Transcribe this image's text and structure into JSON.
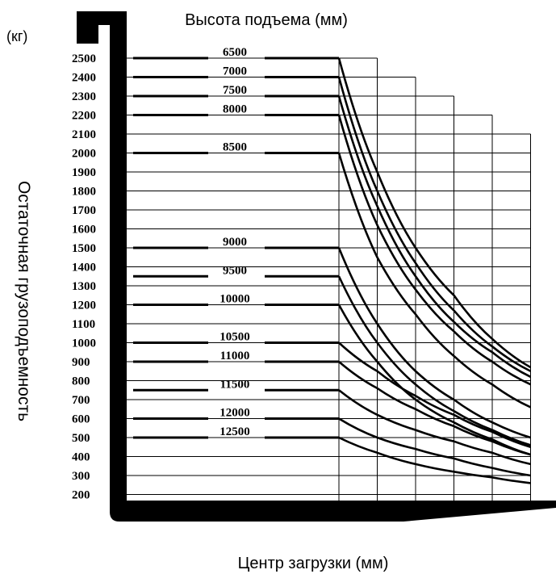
{
  "chart_data": {
    "type": "line",
    "title": "Высота подъема (мм)",
    "y_unit": "(кг)",
    "ylabel": "Остаточная грузоподъемность",
    "xlabel": "Центр загрузки (мм)",
    "y_ticks": [
      2500,
      2400,
      2300,
      2200,
      2100,
      2000,
      1900,
      1800,
      1700,
      1600,
      1500,
      1400,
      1300,
      1200,
      1100,
      1000,
      900,
      800,
      700,
      600,
      500,
      400,
      300,
      200
    ],
    "x_columns": 5,
    "grid": true,
    "series": [
      {
        "name": "6500",
        "level": 2500,
        "end_col": 0,
        "values": [
          2500,
          1900,
          1500,
          1250,
          1020,
          870
        ]
      },
      {
        "name": "7000",
        "level": 2400,
        "end_col": 1,
        "values": [
          2400,
          1800,
          1420,
          1170,
          980,
          850
        ]
      },
      {
        "name": "7500",
        "level": 2300,
        "end_col": 2,
        "values": [
          2300,
          1720,
          1350,
          1110,
          950,
          820
        ]
      },
      {
        "name": "8000",
        "level": 2200,
        "end_col": 3,
        "values": [
          2200,
          1620,
          1280,
          1060,
          900,
          780
        ]
      },
      {
        "name": "8500",
        "level": 2000,
        "end_col": 4,
        "values": [
          2000,
          1450,
          1150,
          930,
          780,
          660
        ]
      },
      {
        "name": "9000",
        "level": 1500,
        "end_col": 4,
        "values": [
          1500,
          1100,
          850,
          700,
          580,
          500
        ]
      },
      {
        "name": "9500",
        "level": 1350,
        "end_col": 4,
        "values": [
          1350,
          1000,
          780,
          640,
          540,
          460
        ]
      },
      {
        "name": "10000",
        "level": 1200,
        "end_col": 4,
        "values": [
          1200,
          900,
          700,
          580,
          490,
          410
        ]
      },
      {
        "name": "10500",
        "level": 1000,
        "end_col": 4,
        "values": [
          1000,
          850,
          720,
          620,
          530,
          450
        ]
      },
      {
        "name": "11000",
        "level": 900,
        "end_col": 4,
        "values": [
          900,
          760,
          650,
          560,
          480,
          410
        ]
      },
      {
        "name": "11500",
        "level": 750,
        "end_col": 4,
        "values": [
          750,
          620,
          540,
          480,
          420,
          360
        ]
      },
      {
        "name": "12000",
        "level": 600,
        "end_col": 4,
        "values": [
          600,
          500,
          440,
          390,
          340,
          300
        ]
      },
      {
        "name": "12500",
        "level": 500,
        "end_col": 4,
        "values": [
          500,
          420,
          360,
          320,
          290,
          260
        ]
      }
    ]
  }
}
